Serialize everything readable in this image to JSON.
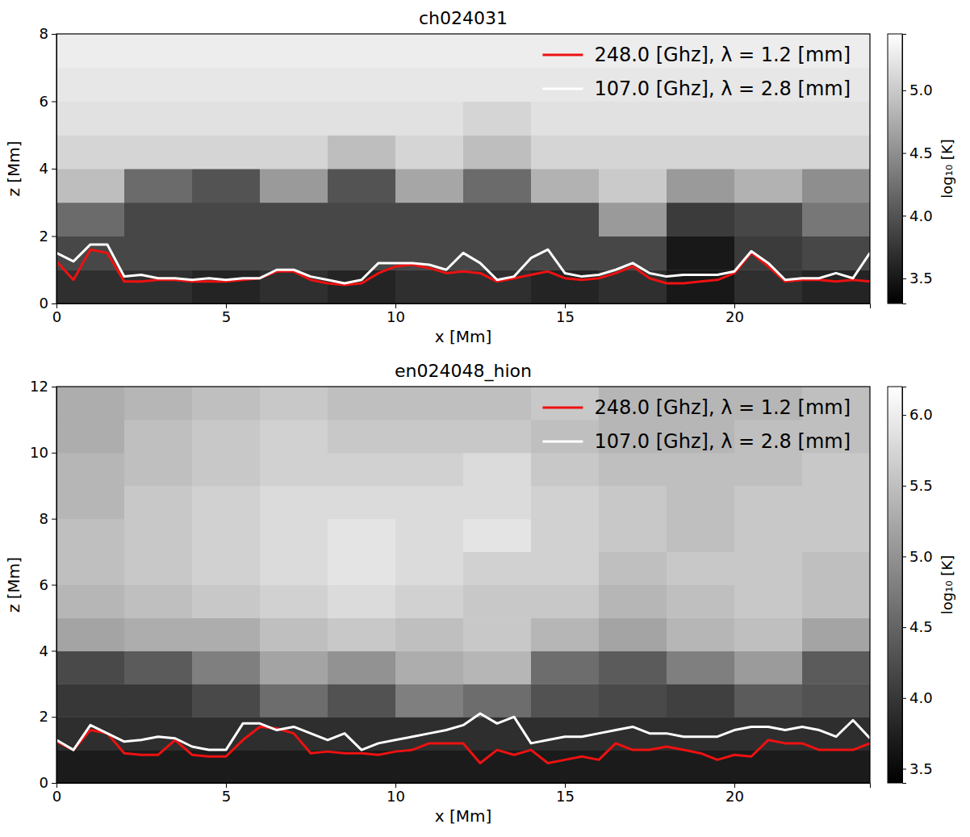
{
  "chart_data": [
    {
      "type": "heatmap",
      "title": "ch024031",
      "xlabel": "x [Mm]",
      "ylabel": "z [Mm]",
      "xlim": [
        0,
        24
      ],
      "xticks": [
        0,
        5,
        10,
        15,
        20
      ],
      "ylim": [
        0,
        8
      ],
      "yticks": [
        0,
        2,
        4,
        6,
        8
      ],
      "legend": "upper right",
      "cells": {
        "x": [
          0,
          2,
          4,
          6,
          8,
          10,
          12,
          14,
          16,
          18,
          20,
          22,
          24
        ],
        "z": [
          0,
          1,
          2,
          3,
          4,
          5,
          6,
          7,
          8
        ],
        "values": [
          [
            3.7,
            3.7,
            3.6,
            3.7,
            3.6,
            3.7,
            3.7,
            3.6,
            3.7,
            3.5,
            3.7,
            3.6
          ],
          [
            3.9,
            3.9,
            3.9,
            3.9,
            3.9,
            3.9,
            3.9,
            3.9,
            3.9,
            3.5,
            3.8,
            3.9
          ],
          [
            4.2,
            3.9,
            3.9,
            3.9,
            3.9,
            3.9,
            3.9,
            3.9,
            4.6,
            3.8,
            3.9,
            4.3
          ],
          [
            4.9,
            4.2,
            4.0,
            4.6,
            4.0,
            4.7,
            4.2,
            4.8,
            5.0,
            4.6,
            4.8,
            4.5
          ],
          [
            5.1,
            5.1,
            5.1,
            5.1,
            4.9,
            5.1,
            4.9,
            5.1,
            5.1,
            5.1,
            5.1,
            5.1
          ],
          [
            5.2,
            5.2,
            5.2,
            5.2,
            5.2,
            5.2,
            5.1,
            5.2,
            5.2,
            5.2,
            5.2,
            5.2
          ],
          [
            5.25,
            5.25,
            5.25,
            5.25,
            5.25,
            5.25,
            5.25,
            5.25,
            5.25,
            5.25,
            5.25,
            5.25
          ],
          [
            5.3,
            5.3,
            5.3,
            5.3,
            5.3,
            5.3,
            5.3,
            5.3,
            5.3,
            5.3,
            5.3,
            5.3
          ]
        ]
      },
      "colorbar": {
        "label": "log₁₀ [K]",
        "range": [
          3.3,
          5.45
        ],
        "ticks": [
          3.5,
          {
            "value": 4,
            "label": "4.0"
          },
          4.5,
          {
            "value": 5,
            "label": "5.0"
          }
        ]
      },
      "x": [
        0,
        0.5,
        1,
        1.5,
        2,
        2.5,
        3,
        3.5,
        4,
        4.5,
        5,
        5.5,
        6,
        6.5,
        7,
        7.5,
        8,
        8.5,
        9,
        9.5,
        10,
        10.5,
        11,
        11.5,
        12,
        12.5,
        13,
        13.5,
        14,
        14.5,
        15,
        15.5,
        16,
        16.5,
        17,
        17.5,
        18,
        18.5,
        19,
        19.5,
        20,
        20.5,
        21,
        21.5,
        22,
        22.5,
        23,
        23.5,
        24
      ],
      "series": [
        {
          "name": "248.0 [Ghz], λ = 1.2 [mm]",
          "color": "#ee1111",
          "values": [
            1.25,
            0.7,
            1.6,
            1.5,
            0.65,
            0.65,
            0.7,
            0.7,
            0.65,
            0.65,
            0.65,
            0.7,
            0.75,
            0.95,
            0.95,
            0.7,
            0.6,
            0.55,
            0.6,
            0.9,
            1.1,
            1.15,
            1.05,
            0.9,
            0.95,
            0.9,
            0.65,
            0.75,
            0.85,
            0.95,
            0.75,
            0.7,
            0.75,
            0.9,
            1.1,
            0.75,
            0.6,
            0.6,
            0.65,
            0.7,
            0.9,
            1.5,
            1.1,
            0.65,
            0.7,
            0.7,
            0.65,
            0.7,
            0.65
          ]
        },
        {
          "name": "107.0 [Ghz], λ = 2.8 [mm]",
          "color": "#ffffff",
          "values": [
            1.5,
            1.25,
            1.75,
            1.75,
            0.8,
            0.85,
            0.75,
            0.75,
            0.7,
            0.75,
            0.7,
            0.75,
            0.75,
            1.0,
            1.0,
            0.8,
            0.7,
            0.6,
            0.7,
            1.2,
            1.2,
            1.2,
            1.15,
            1.0,
            1.5,
            1.2,
            0.7,
            0.8,
            1.35,
            1.6,
            0.9,
            0.8,
            0.85,
            1.0,
            1.2,
            0.9,
            0.8,
            0.85,
            0.85,
            0.85,
            0.95,
            1.55,
            1.2,
            0.7,
            0.75,
            0.75,
            0.9,
            0.75,
            1.5
          ]
        }
      ]
    },
    {
      "type": "heatmap",
      "title": "en024048_hion",
      "xlabel": "x [Mm]",
      "ylabel": "z [Mm]",
      "xlim": [
        0,
        24
      ],
      "xticks": [
        0,
        5,
        10,
        15,
        20
      ],
      "ylim": [
        0,
        12
      ],
      "yticks": [
        0,
        2,
        4,
        6,
        8,
        10,
        12
      ],
      "legend": "upper right",
      "cells": {
        "x": [
          0,
          2,
          4,
          6,
          8,
          10,
          12,
          14,
          16,
          18,
          20,
          22,
          24
        ],
        "z": [
          0,
          1,
          2,
          3,
          4,
          5,
          6,
          7,
          8,
          9,
          10,
          11,
          12
        ],
        "values": [
          [
            3.7,
            3.7,
            3.7,
            3.7,
            3.7,
            3.7,
            3.7,
            3.7,
            3.7,
            3.7,
            3.7,
            3.7
          ],
          [
            3.9,
            3.9,
            3.9,
            3.9,
            3.9,
            3.9,
            3.9,
            3.9,
            3.9,
            3.9,
            3.9,
            3.9
          ],
          [
            4.0,
            4.0,
            4.2,
            4.6,
            4.3,
            4.8,
            4.6,
            4.3,
            4.2,
            4.1,
            4.4,
            4.3
          ],
          [
            4.2,
            4.4,
            4.8,
            5.2,
            5.0,
            5.3,
            5.4,
            4.6,
            4.4,
            4.8,
            5.1,
            4.4
          ],
          [
            5.2,
            5.3,
            5.3,
            5.5,
            5.6,
            5.5,
            5.6,
            5.4,
            5.2,
            5.4,
            5.5,
            5.2
          ],
          [
            5.4,
            5.5,
            5.6,
            5.7,
            5.8,
            5.7,
            5.6,
            5.6,
            5.4,
            5.5,
            5.6,
            5.5
          ],
          [
            5.5,
            5.6,
            5.7,
            5.8,
            5.9,
            5.8,
            5.7,
            5.7,
            5.5,
            5.6,
            5.6,
            5.5
          ],
          [
            5.5,
            5.6,
            5.7,
            5.8,
            5.9,
            5.8,
            5.9,
            5.7,
            5.6,
            5.5,
            5.6,
            5.6
          ],
          [
            5.4,
            5.6,
            5.7,
            5.8,
            5.8,
            5.8,
            5.8,
            5.7,
            5.6,
            5.5,
            5.6,
            5.6
          ],
          [
            5.4,
            5.5,
            5.6,
            5.7,
            5.7,
            5.7,
            5.8,
            5.6,
            5.5,
            5.5,
            5.5,
            5.6
          ],
          [
            5.3,
            5.5,
            5.6,
            5.7,
            5.6,
            5.6,
            5.6,
            5.5,
            5.4,
            5.4,
            5.5,
            5.5
          ],
          [
            5.3,
            5.4,
            5.5,
            5.6,
            5.5,
            5.5,
            5.5,
            5.6,
            5.4,
            5.4,
            5.4,
            5.5
          ]
        ]
      },
      "colorbar": {
        "label": "log₁₀ [K]",
        "range": [
          3.4,
          6.2
        ],
        "ticks": [
          3.5,
          {
            "value": 4,
            "label": "4.0"
          },
          4.5,
          {
            "value": 5,
            "label": "5.0"
          },
          5.5,
          {
            "value": 6,
            "label": "6.0"
          }
        ]
      },
      "x": [
        0,
        0.5,
        1,
        1.5,
        2,
        2.5,
        3,
        3.5,
        4,
        4.5,
        5,
        5.5,
        6,
        6.5,
        7,
        7.5,
        8,
        8.5,
        9,
        9.5,
        10,
        10.5,
        11,
        11.5,
        12,
        12.5,
        13,
        13.5,
        14,
        14.5,
        15,
        15.5,
        16,
        16.5,
        17,
        17.5,
        18,
        18.5,
        19,
        19.5,
        20,
        20.5,
        21,
        21.5,
        22,
        22.5,
        23,
        23.5,
        24
      ],
      "series": [
        {
          "name": "248.0 [Ghz], λ = 1.2 [mm]",
          "color": "#ee1111",
          "values": [
            1.25,
            1.0,
            1.6,
            1.5,
            0.9,
            0.85,
            0.85,
            1.3,
            0.85,
            0.8,
            0.8,
            1.3,
            1.7,
            1.65,
            1.5,
            0.9,
            0.95,
            0.9,
            0.9,
            0.85,
            0.95,
            1.0,
            1.2,
            1.2,
            1.2,
            0.6,
            1.0,
            0.85,
            1.0,
            0.6,
            0.7,
            0.8,
            0.7,
            1.2,
            1.0,
            1.0,
            1.1,
            1.0,
            0.9,
            0.7,
            0.85,
            0.8,
            1.3,
            1.2,
            1.2,
            1.0,
            1.0,
            1.0,
            1.2
          ]
        },
        {
          "name": "107.0 [Ghz], λ = 2.8 [mm]",
          "color": "#ffffff",
          "values": [
            1.3,
            1.0,
            1.75,
            1.5,
            1.25,
            1.3,
            1.4,
            1.35,
            1.1,
            1.0,
            1.0,
            1.8,
            1.8,
            1.6,
            1.7,
            1.5,
            1.3,
            1.5,
            1.0,
            1.2,
            1.3,
            1.4,
            1.5,
            1.6,
            1.75,
            2.1,
            1.8,
            2.0,
            1.2,
            1.3,
            1.4,
            1.4,
            1.5,
            1.6,
            1.7,
            1.5,
            1.5,
            1.4,
            1.4,
            1.4,
            1.6,
            1.7,
            1.7,
            1.6,
            1.7,
            1.6,
            1.4,
            1.9,
            1.35
          ]
        }
      ]
    }
  ]
}
